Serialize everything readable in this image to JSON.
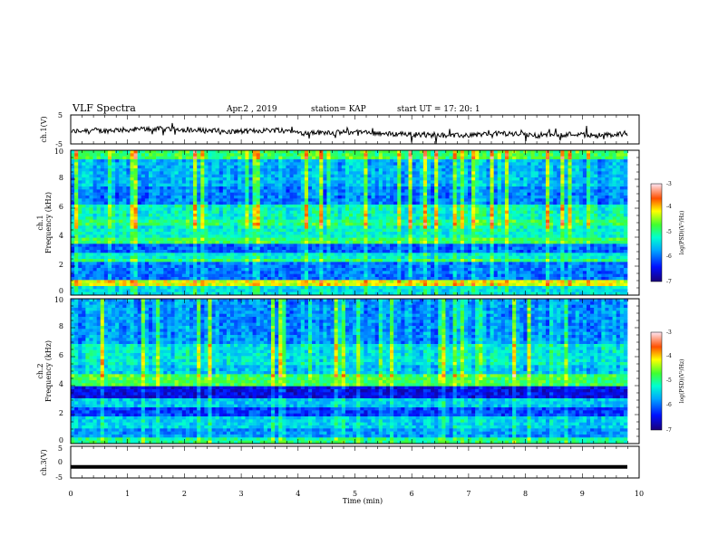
{
  "header": {
    "title": "VLF Spectra",
    "date": "Apr.2  , 2019",
    "station": "station= KAP",
    "start": "start  UT  =   17: 20: 1"
  },
  "chart_data": [
    {
      "type": "line",
      "ylabel": "ch.1(V)",
      "ylim": [
        -5,
        5
      ],
      "yticks": [
        "5",
        "-5"
      ],
      "note": "noisy waveform with values roughly between -3 and +1.5 V over 0-9.8 min"
    },
    {
      "type": "heatmap",
      "channel_label": "ch.1",
      "ylabel": "Frequency (kHz)",
      "ylim": [
        0,
        10
      ],
      "yticks": [
        "0",
        "2",
        "4",
        "6",
        "8",
        "10"
      ],
      "colorbar": {
        "ticks": [
          "-3",
          "-4",
          "-5",
          "-6",
          "-7"
        ],
        "label": "log(PSD)(V²/Hz)",
        "range": [
          -7,
          -3
        ]
      }
    },
    {
      "type": "heatmap",
      "channel_label": "ch.2",
      "ylabel": "Frequency (kHz)",
      "ylim": [
        0,
        10
      ],
      "yticks": [
        "0",
        "2",
        "4",
        "6",
        "8",
        "10"
      ],
      "colorbar": {
        "ticks": [
          "-3",
          "-4",
          "-5",
          "-6",
          "-7"
        ],
        "label": "log(PSD)(V²/Hz)",
        "range": [
          -7,
          -3
        ]
      }
    },
    {
      "type": "line",
      "ylabel": "ch.3(V)",
      "ylim": [
        -5,
        5
      ],
      "yticks": [
        "5",
        "0",
        "-5"
      ],
      "constant_value": -1.5
    }
  ],
  "xaxis": {
    "label": "Time  (min)",
    "xlim": [
      0,
      10
    ],
    "ticks": [
      "0",
      "1",
      "2",
      "3",
      "4",
      "5",
      "6",
      "7",
      "8",
      "9",
      "10"
    ]
  }
}
